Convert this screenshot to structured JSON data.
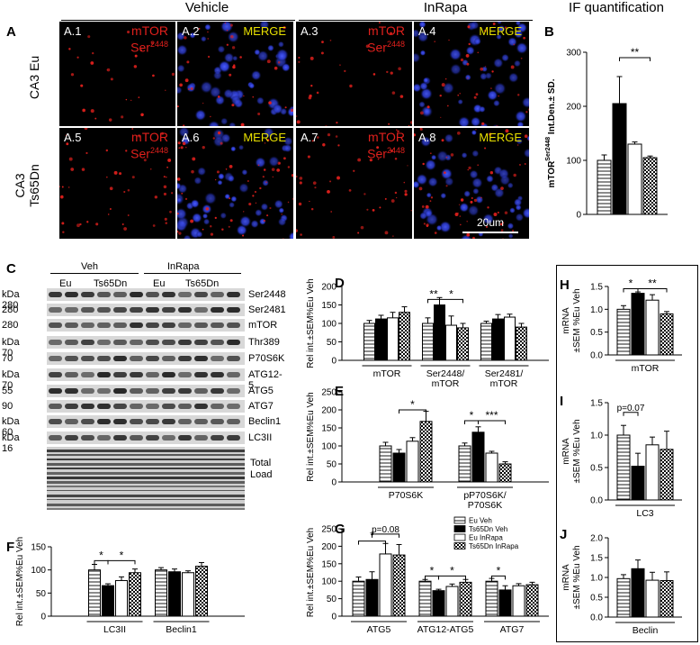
{
  "panel_a": {
    "letter": "A",
    "headers": {
      "vehicle": "Vehicle",
      "inrapa": "InRapa"
    },
    "row_labels": [
      "CA3 Eu",
      "CA3 Ts65Dn"
    ],
    "images": [
      {
        "id": "A.1",
        "type": "mtor"
      },
      {
        "id": "A.2",
        "type": "merge"
      },
      {
        "id": "A.3",
        "type": "mtor"
      },
      {
        "id": "A.4",
        "type": "merge"
      },
      {
        "id": "A.5",
        "type": "mtor"
      },
      {
        "id": "A.6",
        "type": "merge"
      },
      {
        "id": "A.7",
        "type": "mtor"
      },
      {
        "id": "A.8",
        "type": "merge"
      }
    ],
    "mtor_text": "mTOR",
    "ser_text": "Ser",
    "ser_sup": "2448",
    "merge_text": "MERGE",
    "scale_bar": "20um"
  },
  "panel_c": {
    "letter": "C",
    "groups_top": [
      "Veh",
      "InRapa"
    ],
    "groups_sub": [
      "Eu",
      "Ts65Dn",
      "Eu",
      "Ts65Dn"
    ],
    "rows": [
      {
        "kda": "kDa 280",
        "label": "Ser2448"
      },
      {
        "kda": "280",
        "label": "Ser2481"
      },
      {
        "kda": "280",
        "label": "mTOR"
      },
      {
        "kda": "kDa 70",
        "label": "Thr389"
      },
      {
        "kda": "70",
        "label": "P70S6K"
      },
      {
        "kda": "kDa 70",
        "label": "ATG12-5"
      },
      {
        "kda": "55",
        "label": "ATG5"
      },
      {
        "kda": "90",
        "label": "ATG7"
      },
      {
        "kda": "kDa 60",
        "label": "Beclin1"
      },
      {
        "kda": "kDa 16",
        "label": "LC3II"
      }
    ],
    "total_load": [
      "Total",
      "Load"
    ]
  },
  "header_if": "IF quantification",
  "legend": [
    "Eu Veh",
    "Ts65Dn Veh",
    "Eu InRapa",
    "Ts65Dn InRapa"
  ],
  "colors": {
    "red": "#e0201c",
    "yellow": "#e8e000",
    "blue": "#2b3cff"
  },
  "chart_data": [
    {
      "panel": "B",
      "type": "bar",
      "ylabel": "mTOR Ser2448 Int.Den.± SD.",
      "ylabel_main": "mTOR",
      "ylabel_sup": "Ser2448",
      "ylabel_tail": " Int.Den.± SD.",
      "ylim": [
        0,
        300
      ],
      "yticks": [
        0,
        100,
        200,
        300
      ],
      "categories": [
        ""
      ],
      "series": [
        {
          "values": [
            100
          ]
        },
        {
          "values": [
            205
          ]
        },
        {
          "values": [
            130
          ]
        },
        {
          "values": [
            105
          ]
        }
      ],
      "errors": [
        [
          10
        ],
        [
          50
        ],
        [
          4
        ],
        [
          3
        ]
      ],
      "annotations": [
        "**"
      ]
    },
    {
      "panel": "D",
      "type": "bar",
      "ylabel": "Rel int.±SEM%Eu Veh",
      "ylim": [
        0,
        200
      ],
      "yticks": [
        0,
        50,
        100,
        150,
        200
      ],
      "categories": [
        "mTOR",
        "Ser2448/ mTOR",
        "Ser2481/ mTOR"
      ],
      "series": [
        {
          "values": [
            100,
            100,
            100
          ]
        },
        {
          "values": [
            112,
            150,
            112
          ]
        },
        {
          "values": [
            115,
            95,
            117
          ]
        },
        {
          "values": [
            130,
            88,
            90
          ]
        }
      ],
      "errors": [
        [
          8,
          15,
          6
        ],
        [
          10,
          20,
          12
        ],
        [
          15,
          25,
          8
        ],
        [
          15,
          12,
          10
        ]
      ],
      "annotations": [
        "**",
        "*"
      ]
    },
    {
      "panel": "E",
      "type": "bar",
      "ylabel": "Rel int.±SEM%Eu Veh",
      "ylim": [
        0,
        250
      ],
      "yticks": [
        0,
        50,
        100,
        150,
        200,
        250
      ],
      "categories": [
        "P70S6K",
        "pP70S6K/ P70S6K"
      ],
      "series": [
        {
          "values": [
            100,
            100
          ]
        },
        {
          "values": [
            80,
            138
          ]
        },
        {
          "values": [
            113,
            80
          ]
        },
        {
          "values": [
            168,
            50
          ]
        }
      ],
      "errors": [
        [
          10,
          8
        ],
        [
          10,
          15
        ],
        [
          10,
          5
        ],
        [
          28,
          6
        ]
      ],
      "annotations": [
        "*",
        "*",
        "***"
      ]
    },
    {
      "panel": "F",
      "type": "bar",
      "ylabel": "Rel int.±SEM%Eu Veh",
      "ylim": [
        0,
        150
      ],
      "yticks": [
        0,
        50,
        100,
        150
      ],
      "categories": [
        "LC3II",
        "Beclin1"
      ],
      "series": [
        {
          "values": [
            100,
            100
          ]
        },
        {
          "values": [
            66,
            96
          ]
        },
        {
          "values": [
            77,
            94
          ]
        },
        {
          "values": [
            94,
            108
          ]
        }
      ],
      "errors": [
        [
          12,
          5
        ],
        [
          4,
          6
        ],
        [
          8,
          4
        ],
        [
          8,
          8
        ]
      ],
      "annotations": [
        "*",
        "*"
      ]
    },
    {
      "panel": "G",
      "type": "bar",
      "ylabel": "Rel int.±SEM%Eu Veh",
      "ylim": [
        0,
        250
      ],
      "yticks": [
        0,
        50,
        100,
        150,
        200,
        250
      ],
      "categories": [
        "ATG5",
        "ATG12-ATG5",
        "ATG7"
      ],
      "series": [
        {
          "values": [
            100,
            100,
            100
          ]
        },
        {
          "values": [
            105,
            73,
            75
          ]
        },
        {
          "values": [
            178,
            85,
            87
          ]
        },
        {
          "values": [
            175,
            97,
            90
          ]
        }
      ],
      "errors": [
        [
          12,
          5,
          8
        ],
        [
          22,
          4,
          12
        ],
        [
          30,
          7,
          6
        ],
        [
          30,
          8,
          7
        ]
      ],
      "annotations": [
        "*",
        "p=0.08",
        "*",
        "*",
        "*"
      ]
    },
    {
      "panel": "H",
      "type": "bar",
      "ylabel": "mRNA ±SEM %Eu Veh",
      "ylim": [
        0,
        1.5
      ],
      "yticks": [
        0.0,
        0.5,
        1.0,
        1.5
      ],
      "categories": [
        "mTOR"
      ],
      "series": [
        {
          "values": [
            1.0
          ]
        },
        {
          "values": [
            1.35
          ]
        },
        {
          "values": [
            1.2
          ]
        },
        {
          "values": [
            0.9
          ]
        }
      ],
      "errors": [
        [
          0.08
        ],
        [
          0.03
        ],
        [
          0.12
        ],
        [
          0.05
        ]
      ],
      "annotations": [
        "*",
        "**"
      ]
    },
    {
      "panel": "I",
      "type": "bar",
      "ylabel": "mRNA ±SEM %Eu Veh",
      "ylim": [
        0,
        1.5
      ],
      "yticks": [
        0.0,
        0.5,
        1.0,
        1.5
      ],
      "categories": [
        "LC3"
      ],
      "series": [
        {
          "values": [
            1.0
          ]
        },
        {
          "values": [
            0.52
          ]
        },
        {
          "values": [
            0.85
          ]
        },
        {
          "values": [
            0.78
          ]
        }
      ],
      "errors": [
        [
          0.15
        ],
        [
          0.2
        ],
        [
          0.12
        ],
        [
          0.28
        ]
      ],
      "annotations": [
        "p=0.07"
      ]
    },
    {
      "panel": "J",
      "type": "bar",
      "ylabel": "mRNA ±SEM %Eu Veh",
      "ylim": [
        0,
        2.0
      ],
      "yticks": [
        0.0,
        0.5,
        1.0,
        1.5,
        2.0
      ],
      "categories": [
        "Beclin"
      ],
      "series": [
        {
          "values": [
            0.97
          ]
        },
        {
          "values": [
            1.22
          ]
        },
        {
          "values": [
            0.93
          ]
        },
        {
          "values": [
            0.92
          ]
        }
      ],
      "errors": [
        [
          0.1
        ],
        [
          0.22
        ],
        [
          0.2
        ],
        [
          0.22
        ]
      ],
      "annotations": []
    }
  ]
}
